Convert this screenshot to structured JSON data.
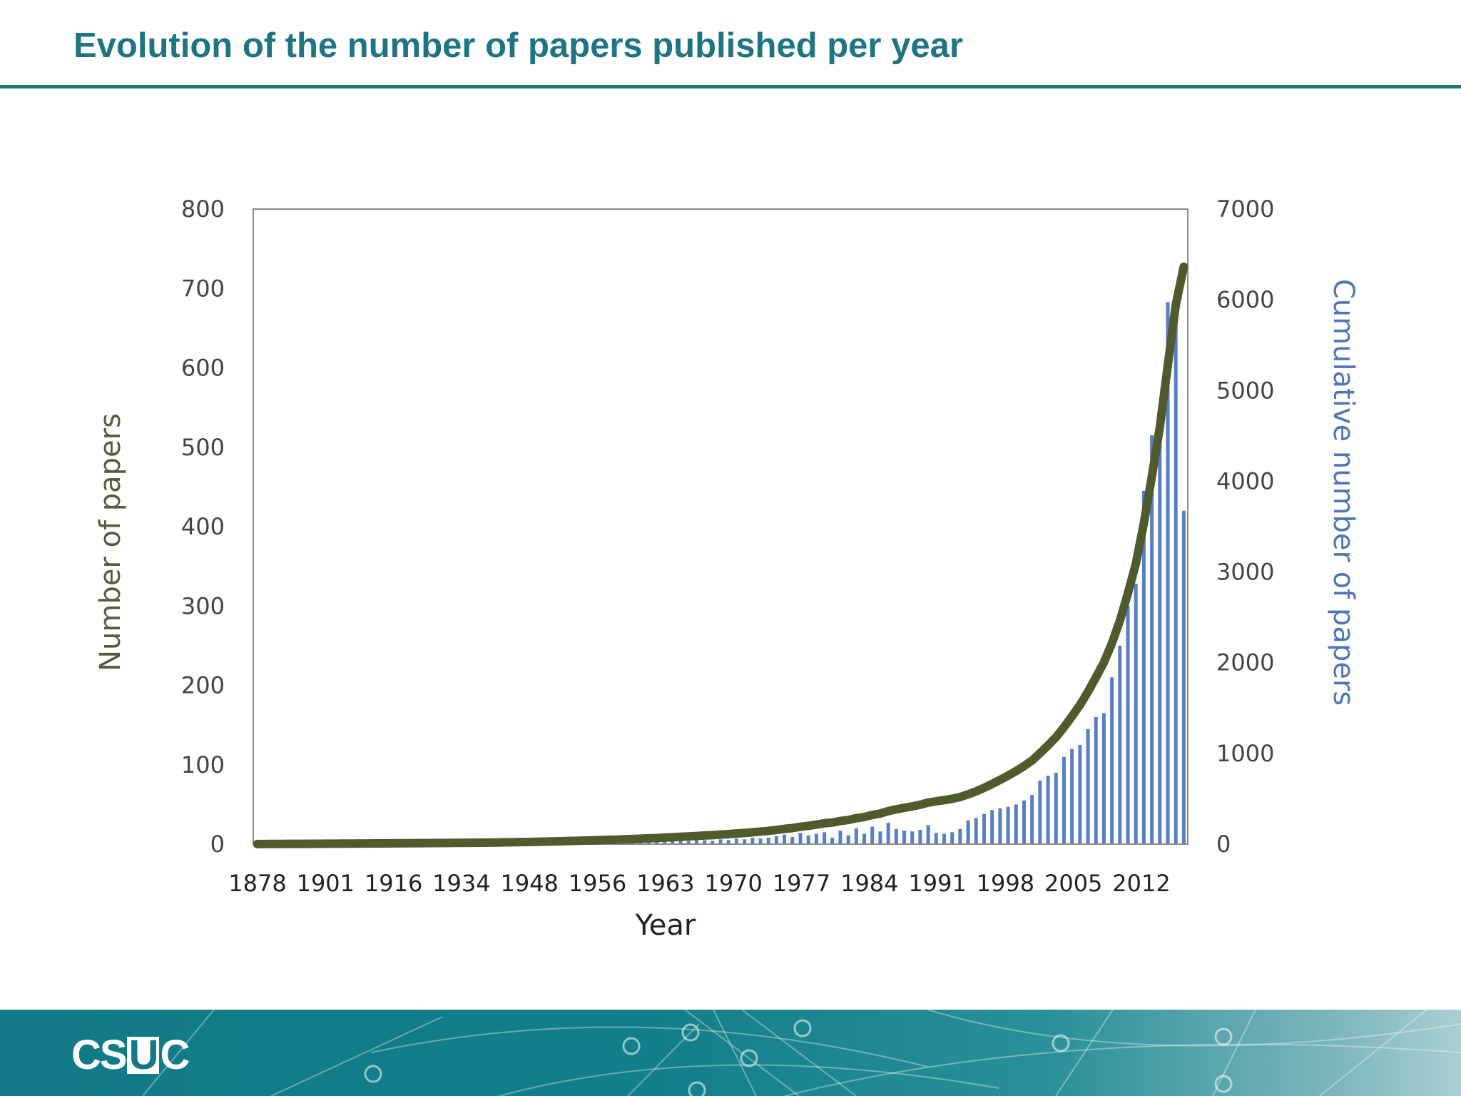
{
  "slide": {
    "title": "Evolution of the number of papers published per year"
  },
  "footer": {
    "logo_parts": [
      "CS",
      "U",
      "C"
    ]
  },
  "colors": {
    "title": "#1f7481",
    "bars": "#5b7fc4",
    "cumulative_line": "#4f5b2d",
    "left_axis_label": "#5c5a3c",
    "right_axis_label": "#4f76b8",
    "footer": "#117a86"
  },
  "chart_data": {
    "type": "bar",
    "xlabel": "Year",
    "ylabel": "Number of papers",
    "y2label": "Cumulative number of papers",
    "ylim": [
      0,
      800
    ],
    "y2lim": [
      0,
      7000
    ],
    "yticks": [
      0,
      100,
      200,
      300,
      400,
      500,
      600,
      700,
      800
    ],
    "y2ticks": [
      0,
      1000,
      2000,
      3000,
      4000,
      5000,
      6000,
      7000
    ],
    "xtick_labels": [
      "1878",
      "1901",
      "1916",
      "1934",
      "1948",
      "1956",
      "1963",
      "1970",
      "1977",
      "1984",
      "1991",
      "1998",
      "2005",
      "2012"
    ],
    "grid": false,
    "legend": "none",
    "series": [
      {
        "name": "Number of papers",
        "type": "bar",
        "axis": "left",
        "values": [
          1,
          0,
          1,
          0,
          1,
          0,
          0,
          1,
          0,
          1,
          0,
          1,
          0,
          1,
          0,
          1,
          0,
          1,
          1,
          0,
          1,
          0,
          1,
          1,
          0,
          1,
          1,
          0,
          1,
          1,
          1,
          2,
          1,
          2,
          1,
          2,
          2,
          1,
          2,
          3,
          2,
          3,
          2,
          3,
          3,
          2,
          4,
          3,
          4,
          4,
          3,
          5,
          4,
          5,
          4,
          5,
          5,
          4,
          6,
          5,
          7,
          6,
          8,
          7,
          8,
          10,
          12,
          9,
          14,
          11,
          13,
          15,
          8,
          17,
          11,
          20,
          13,
          22,
          16,
          27,
          19,
          17,
          16,
          18,
          24,
          14,
          13,
          15,
          19,
          30,
          33,
          38,
          43,
          45,
          47,
          50,
          55,
          62,
          80,
          86,
          90,
          110,
          120,
          125,
          145,
          160,
          165,
          210,
          250,
          300,
          328,
          445,
          515,
          545,
          683,
          665,
          420
        ]
      },
      {
        "name": "Cumulative number of papers",
        "type": "line",
        "axis": "right",
        "values": [
          1,
          1,
          2,
          2,
          3,
          3,
          3,
          4,
          4,
          5,
          5,
          6,
          6,
          7,
          7,
          8,
          8,
          9,
          10,
          10,
          11,
          11,
          12,
          13,
          13,
          14,
          15,
          15,
          16,
          17,
          18,
          20,
          21,
          23,
          24,
          26,
          28,
          29,
          31,
          34,
          36,
          39,
          41,
          44,
          47,
          49,
          53,
          56,
          60,
          64,
          67,
          72,
          76,
          81,
          85,
          90,
          95,
          99,
          105,
          110,
          117,
          123,
          131,
          138,
          146,
          156,
          168,
          177,
          191,
          202,
          215,
          230,
          238,
          255,
          266,
          286,
          299,
          321,
          337,
          364,
          383,
          400,
          416,
          434,
          458,
          472,
          485,
          500,
          519,
          549,
          582,
          620,
          663,
          708,
          755,
          805,
          860,
          922,
          1002,
          1088,
          1178,
          1288,
          1408,
          1533,
          1678,
          1838,
          2003,
          2213,
          2463,
          2763,
          3091,
          3536,
          4051,
          4596,
          5279,
          5944,
          6364
        ]
      }
    ]
  }
}
